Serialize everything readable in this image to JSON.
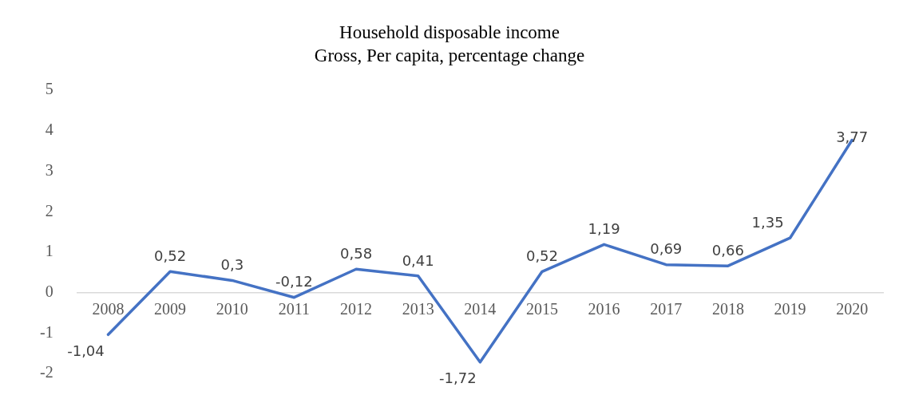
{
  "chart_data": {
    "type": "line",
    "title": "Household disposable income",
    "subtitle": "Gross, Per capita, percentage change",
    "categories": [
      "2008",
      "2009",
      "2010",
      "2011",
      "2012",
      "2013",
      "2014",
      "2015",
      "2016",
      "2017",
      "2018",
      "2019",
      "2020"
    ],
    "series": [
      {
        "color": "#4472c4",
        "values": [
          -1.04,
          0.52,
          0.3,
          -0.12,
          0.58,
          0.41,
          -1.72,
          0.52,
          1.19,
          0.69,
          0.66,
          1.35,
          3.77
        ],
        "value_labels": [
          "-1,04",
          "0,52",
          "0,3",
          "-0,12",
          "0,58",
          "0,41",
          "-1,72",
          "0,52",
          "1,19",
          "0,69",
          "0,66",
          "1,35",
          "3,77"
        ]
      }
    ],
    "ylim": [
      -2,
      5
    ],
    "yticks": [
      -2,
      -1,
      0,
      1,
      2,
      3,
      4,
      5
    ],
    "grid": false,
    "legend": false,
    "marker": "none",
    "line_style": "solid"
  }
}
